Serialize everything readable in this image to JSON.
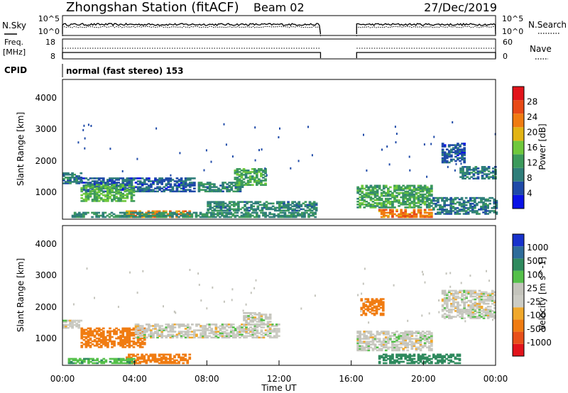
{
  "header": {
    "station": "Zhongshan Station (fitACF)",
    "beam": "Beam 02",
    "date": "27/Dec/2019"
  },
  "sky_panel": {
    "left_label": "N.Sky",
    "right_label": "N.Search",
    "left_ticks": [
      "10^5",
      "10^0"
    ],
    "right_ticks": [
      "10^5",
      "10^0"
    ]
  },
  "freq_panel": {
    "left_label_1": "Freq.",
    "left_label_2": "[MHz]",
    "right_label": "Nave",
    "left_ticks": [
      "18",
      "8"
    ],
    "right_ticks": [
      "60",
      "0"
    ]
  },
  "cpid": {
    "label": "CPID",
    "text": "normal (fast stereo) 153"
  },
  "colors": {
    "power_scale": [
      "#0a12e6",
      "#1f4aa8",
      "#2f7e7a",
      "#3c9a5c",
      "#6fc83c",
      "#e2b415",
      "#f07c12",
      "#e84a17",
      "#e2141b"
    ],
    "velocity_scale": [
      "#1832cc",
      "#2e6c9a",
      "#2f8a5e",
      "#55c04a",
      "#c4c4bc",
      "#ccccc4",
      "#f0a82c",
      "#f07c12",
      "#e8501a",
      "#e2141b"
    ],
    "gap_color": "#ffffff"
  },
  "chart_data": [
    {
      "type": "heatmap",
      "name": "power",
      "ylabel": "Slant Range [km]",
      "yticks": [
        "1000",
        "2000",
        "3000",
        "4000"
      ],
      "ylim": [
        150,
        4500
      ],
      "colorbar_label": "Power [dB]",
      "colorbar_ticks": [
        "4",
        "8",
        "12",
        "16",
        "20",
        "24",
        "28"
      ],
      "clim": [
        0,
        30
      ],
      "data_gap_ut": [
        14.3,
        16.3
      ],
      "blobs": [
        {
          "t0": 0.0,
          "t1": 1.0,
          "r0": 1250,
          "r1": 1600,
          "level": 8
        },
        {
          "t0": 1.0,
          "t1": 7.3,
          "r0": 1000,
          "r1": 1450,
          "level": 6
        },
        {
          "t0": 1.0,
          "t1": 4.0,
          "r0": 700,
          "r1": 1200,
          "level": 13
        },
        {
          "t0": 3.5,
          "t1": 7.0,
          "r0": 200,
          "r1": 400,
          "level": 21
        },
        {
          "t0": 0.5,
          "t1": 14.0,
          "r0": 200,
          "r1": 350,
          "level": 10
        },
        {
          "t0": 7.5,
          "t1": 10.0,
          "r0": 1000,
          "r1": 1300,
          "level": 9
        },
        {
          "t0": 9.5,
          "t1": 11.2,
          "r0": 1200,
          "r1": 1700,
          "level": 12
        },
        {
          "t0": 8.0,
          "t1": 14.0,
          "r0": 400,
          "r1": 700,
          "level": 9
        },
        {
          "t0": 16.3,
          "t1": 20.5,
          "r0": 500,
          "r1": 1200,
          "level": 12
        },
        {
          "t0": 17.5,
          "t1": 20.5,
          "r0": 200,
          "r1": 450,
          "level": 22
        },
        {
          "t0": 20.5,
          "t1": 24.0,
          "r0": 300,
          "r1": 800,
          "level": 8
        },
        {
          "t0": 21.0,
          "t1": 22.3,
          "r0": 1900,
          "r1": 2500,
          "level": 6
        },
        {
          "t0": 22.0,
          "t1": 24.0,
          "r0": 1400,
          "r1": 1800,
          "level": 8
        }
      ]
    },
    {
      "type": "heatmap",
      "name": "velocity",
      "ylabel": "Slant Range [km]",
      "yticks": [
        "1000",
        "2000",
        "3000",
        "4000"
      ],
      "ylim": [
        150,
        4500
      ],
      "colorbar_label": "Velocity [m s^-1]",
      "colorbar_ticks": [
        "1000",
        "500",
        "100",
        "25",
        "-25",
        "-100",
        "-500",
        "-1000"
      ],
      "data_gap_ut": [
        14.3,
        16.3
      ],
      "blobs": [
        {
          "t0": 0.0,
          "t1": 1.0,
          "r0": 1300,
          "r1": 1550,
          "level": 0
        },
        {
          "t0": 1.0,
          "t1": 4.5,
          "r0": 700,
          "r1": 1300,
          "level": -300
        },
        {
          "t0": 3.5,
          "t1": 7.0,
          "r0": 200,
          "r1": 500,
          "level": -300
        },
        {
          "t0": 0.3,
          "t1": 4.0,
          "r0": 200,
          "r1": 350,
          "level": 80
        },
        {
          "t0": 4.0,
          "t1": 12.0,
          "r0": 1000,
          "r1": 1450,
          "level": 0
        },
        {
          "t0": 10.0,
          "t1": 11.5,
          "r0": 1400,
          "r1": 1800,
          "level": 0
        },
        {
          "t0": 16.3,
          "t1": 20.5,
          "r0": 600,
          "r1": 1200,
          "level": 0
        },
        {
          "t0": 17.5,
          "t1": 22.0,
          "r0": 200,
          "r1": 500,
          "level": 200
        },
        {
          "t0": 21.0,
          "t1": 24.0,
          "r0": 1600,
          "r1": 2500,
          "level": 0
        },
        {
          "t0": 16.5,
          "t1": 17.8,
          "r0": 1700,
          "r1": 2200,
          "level": -200
        }
      ]
    }
  ],
  "time_axis": {
    "label": "Time UT",
    "ticks": [
      "00:00",
      "04:00",
      "08:00",
      "12:00",
      "16:00",
      "20:00",
      "00:00"
    ]
  }
}
